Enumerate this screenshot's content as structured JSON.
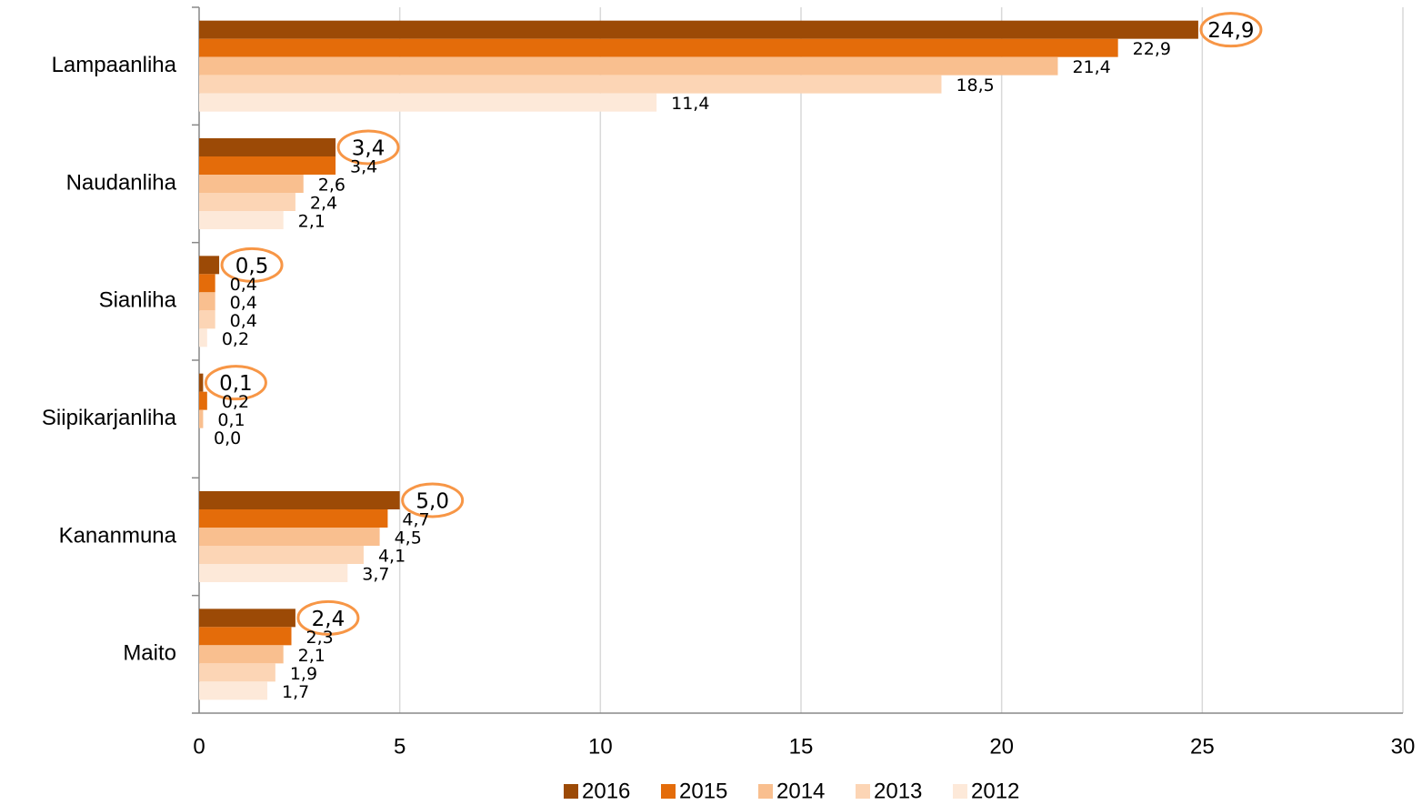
{
  "chart_data": {
    "type": "hbar",
    "categories": [
      "Lampaanliha",
      "Naudanliha",
      "Sianliha",
      "Siipikarjanliha",
      "Kananmuna",
      "Maito"
    ],
    "series": [
      {
        "name": "2016",
        "color": "#9c4a06",
        "values": [
          24.9,
          3.4,
          0.5,
          0.1,
          5.0,
          2.4
        ],
        "value_labels": [
          "24,9",
          "3,4",
          "0,5",
          "0,1",
          "5,0",
          "2,4"
        ]
      },
      {
        "name": "2015",
        "color": "#e46c0a",
        "values": [
          22.9,
          3.4,
          0.4,
          0.2,
          4.7,
          2.3
        ],
        "value_labels": [
          "22,9",
          "3,4",
          "0,4",
          "0,2",
          "4,7",
          "2,3"
        ]
      },
      {
        "name": "2014",
        "color": "#f9bf8f",
        "values": [
          21.4,
          2.6,
          0.4,
          0.1,
          4.5,
          2.1
        ],
        "value_labels": [
          "21,4",
          "2,6",
          "0,4",
          "0,1",
          "4,5",
          "2,1"
        ]
      },
      {
        "name": "2013",
        "color": "#fcd5b5",
        "values": [
          18.5,
          2.4,
          0.4,
          0.0,
          4.1,
          1.9
        ],
        "value_labels": [
          "18,5",
          "2,4",
          "0,4",
          "0,0",
          "4,1",
          "1,9"
        ]
      },
      {
        "name": "2012",
        "color": "#fde9d9",
        "values": [
          11.4,
          2.1,
          0.2,
          null,
          3.7,
          1.7
        ],
        "value_labels": [
          "11,4",
          "2,1",
          "0,2",
          null,
          "3,7",
          "1,7"
        ]
      }
    ],
    "xlim": [
      0,
      30
    ],
    "xticks": [
      0,
      5,
      10,
      15,
      20,
      25,
      30
    ],
    "grid": true,
    "legend": "bottom"
  }
}
